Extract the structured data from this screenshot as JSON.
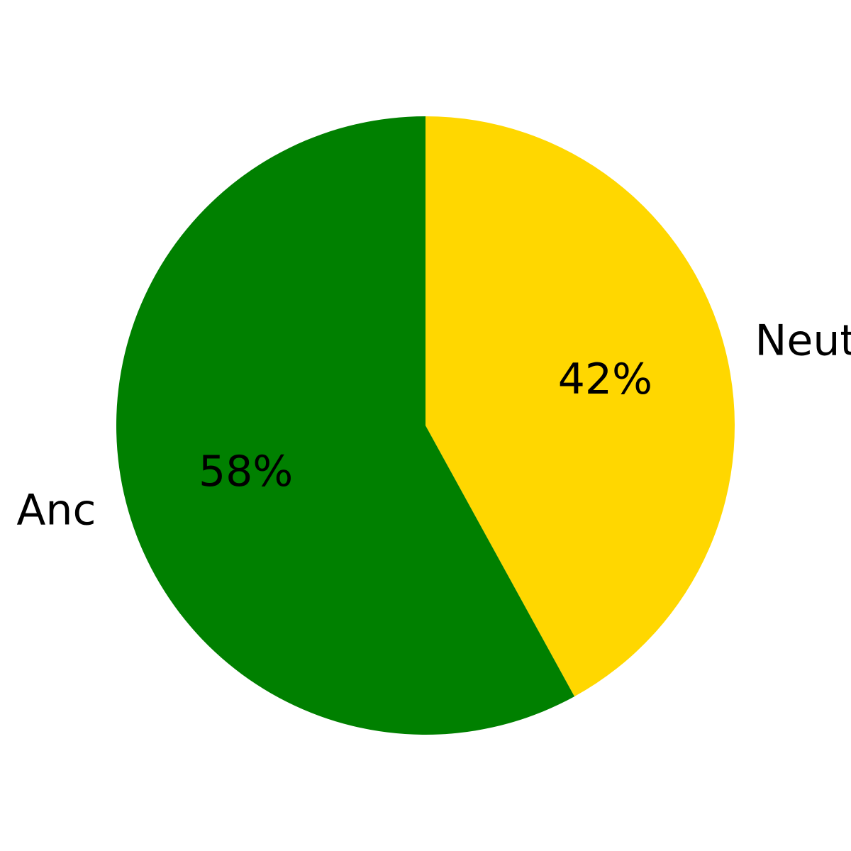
{
  "chart_data": {
    "type": "pie",
    "labels": [
      "Neut",
      "Anc"
    ],
    "values": [
      42,
      58
    ],
    "value_labels": [
      "42%",
      "58%"
    ],
    "colors": [
      "#ffd700",
      "#008000"
    ],
    "start_angle": "12 o'clock",
    "direction": "clockwise"
  }
}
